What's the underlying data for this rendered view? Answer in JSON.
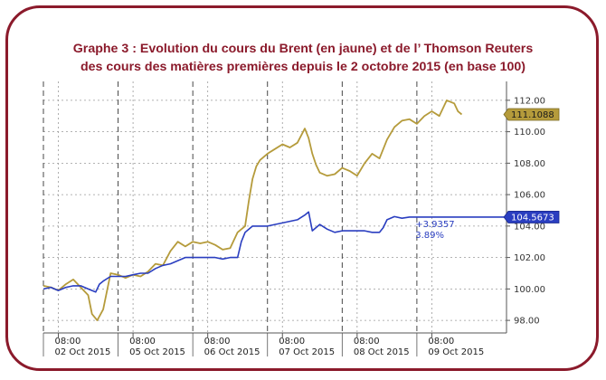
{
  "title": {
    "line1": "Graphe 3 : Evolution du cours du Brent (en jaune) et de l’ Thomson Reuters",
    "line2": "des cours des matières premières depuis le 2 octobre 2015 (en base 100)"
  },
  "chart_data": {
    "type": "line",
    "title": "Graphe 3 : Evolution du cours du Brent (en jaune) et de l’ Thomson Reuters des cours des matières premières depuis le 2 octobre 2015 (en base 100)",
    "xlabel": "",
    "ylabel": "",
    "ylim": [
      97.2,
      113.2
    ],
    "xlim": [
      0,
      6.2
    ],
    "yticks": [
      98,
      100,
      102,
      104,
      106,
      108,
      110,
      112
    ],
    "ytick_labels": [
      "98.00",
      "100.00",
      "102.00",
      "104.00",
      "106.00",
      "108.00",
      "110.00",
      "112.00"
    ],
    "xticks": [
      {
        "x": 0.2,
        "time": "08:00",
        "date": "02 Oct 2015"
      },
      {
        "x": 1.2,
        "time": "08:00",
        "date": "05 Oct 2015"
      },
      {
        "x": 2.2,
        "time": "08:00",
        "date": "06 Oct 2015"
      },
      {
        "x": 3.2,
        "time": "08:00",
        "date": "07 Oct 2015"
      },
      {
        "x": 4.2,
        "time": "08:00",
        "date": "08 Oct 2015"
      },
      {
        "x": 5.2,
        "time": "08:00",
        "date": "09 Oct 2015"
      }
    ],
    "day_boundaries": [
      0.0,
      1.0,
      2.0,
      3.0,
      4.0,
      5.0
    ],
    "grid": true,
    "series": [
      {
        "name": "Brent",
        "color": "#b59b3b",
        "last_value_label": "111.1088",
        "x": [
          0.0,
          0.1,
          0.2,
          0.3,
          0.4,
          0.5,
          0.6,
          0.65,
          0.72,
          0.8,
          0.9,
          1.0,
          1.1,
          1.2,
          1.3,
          1.4,
          1.5,
          1.6,
          1.7,
          1.8,
          1.9,
          2.0,
          2.1,
          2.2,
          2.3,
          2.4,
          2.5,
          2.6,
          2.7,
          2.75,
          2.8,
          2.85,
          2.9,
          3.0,
          3.1,
          3.2,
          3.3,
          3.4,
          3.5,
          3.55,
          3.6,
          3.65,
          3.7,
          3.8,
          3.9,
          4.0,
          4.1,
          4.2,
          4.3,
          4.4,
          4.5,
          4.6,
          4.7,
          4.8,
          4.9,
          5.0,
          5.1,
          5.2,
          5.3,
          5.4,
          5.5,
          5.55,
          5.6
        ],
        "y": [
          100.2,
          100.1,
          99.9,
          100.3,
          100.6,
          100.1,
          99.6,
          98.4,
          98.0,
          98.7,
          101.0,
          100.9,
          100.7,
          100.9,
          100.8,
          101.1,
          101.6,
          101.5,
          102.4,
          103.0,
          102.7,
          103.0,
          102.9,
          103.0,
          102.8,
          102.5,
          102.6,
          103.6,
          104.0,
          105.6,
          107.0,
          107.8,
          108.2,
          108.6,
          108.9,
          109.2,
          109.0,
          109.3,
          110.2,
          109.6,
          108.6,
          107.9,
          107.4,
          107.2,
          107.3,
          107.7,
          107.5,
          107.2,
          108.0,
          108.6,
          108.3,
          109.5,
          110.3,
          110.7,
          110.8,
          110.5,
          111.0,
          111.3,
          111.0,
          112.0,
          111.8,
          111.3,
          111.1
        ]
      },
      {
        "name": "Thomson Reuters",
        "color": "#2a3ec0",
        "last_value_label": "104.5673",
        "change_label": "+3.9357",
        "change_pct_label": "3.89%",
        "x": [
          0.0,
          0.1,
          0.2,
          0.3,
          0.4,
          0.5,
          0.6,
          0.7,
          0.75,
          0.8,
          0.9,
          1.0,
          1.1,
          1.2,
          1.3,
          1.4,
          1.5,
          1.6,
          1.7,
          1.8,
          1.9,
          2.0,
          2.1,
          2.2,
          2.3,
          2.4,
          2.5,
          2.6,
          2.65,
          2.7,
          2.8,
          2.9,
          3.0,
          3.1,
          3.2,
          3.3,
          3.4,
          3.5,
          3.55,
          3.6,
          3.7,
          3.8,
          3.9,
          4.0,
          4.1,
          4.2,
          4.3,
          4.4,
          4.5,
          4.55,
          4.6,
          4.7,
          4.8,
          4.9,
          5.0,
          5.5,
          6.2
        ],
        "y": [
          100.0,
          100.1,
          99.9,
          100.1,
          100.2,
          100.2,
          100.0,
          99.8,
          100.3,
          100.5,
          100.8,
          100.8,
          100.8,
          100.9,
          101.0,
          101.0,
          101.3,
          101.5,
          101.6,
          101.8,
          102.0,
          102.0,
          102.0,
          102.0,
          102.0,
          101.9,
          102.0,
          102.0,
          103.0,
          103.6,
          104.0,
          104.0,
          104.0,
          104.1,
          104.2,
          104.3,
          104.4,
          104.7,
          104.9,
          103.7,
          104.1,
          103.8,
          103.6,
          103.7,
          103.7,
          103.7,
          103.7,
          103.6,
          103.6,
          103.9,
          104.4,
          104.6,
          104.5,
          104.57,
          104.57,
          104.57,
          104.57
        ]
      }
    ]
  }
}
